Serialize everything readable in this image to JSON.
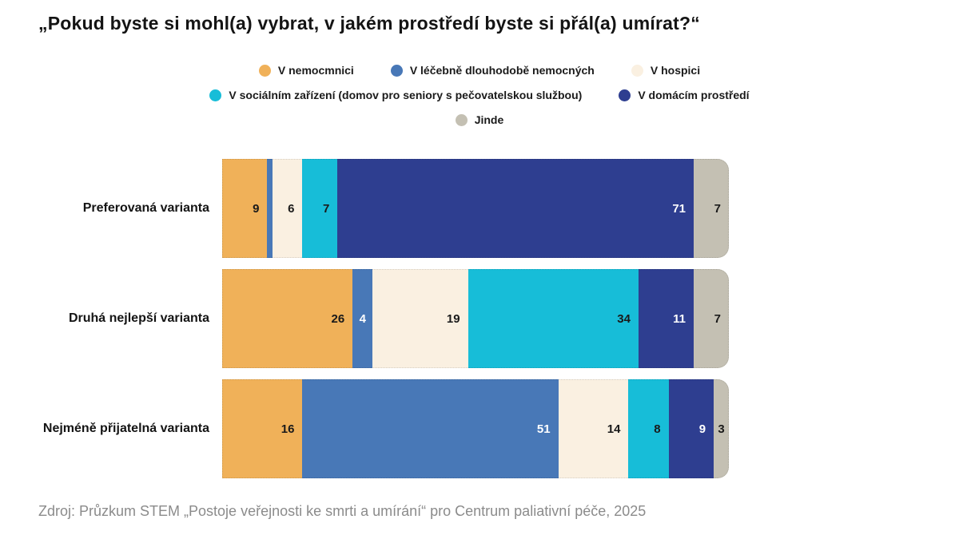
{
  "title": "„Pokud byste si mohl(a) vybrat, v jakém prostředí byste si přál(a) umírat?“",
  "source": "Zdroj: Průzkum STEM „Postoje veřejnosti ke smrti a umírání“ pro Centrum paliativní péče, 2025",
  "chart_data": {
    "type": "bar",
    "orientation": "horizontal-stacked",
    "unit": "percent",
    "title": "„Pokud byste si mohl(a) vybrat, v jakém prostředí byste si přál(a) umírat?“",
    "categories": [
      "Preferovaná varianta",
      "Druhá nejlepší varianta",
      "Nejméně přijatelná varianta"
    ],
    "series": [
      {
        "name": "V nemocmnici",
        "color": "#F0B159",
        "label_color": "#1a1a1a",
        "values": [
          9,
          26,
          16
        ],
        "labels": [
          "9",
          "26",
          "16"
        ]
      },
      {
        "name": "V léčebně dlouhodobě nemocných",
        "color": "#4878B7",
        "label_color": "#ffffff",
        "values": [
          1,
          4,
          51
        ],
        "labels": [
          "",
          "4",
          "51"
        ]
      },
      {
        "name": "V hospici",
        "color": "#FAF0E1",
        "label_color": "#1a1a1a",
        "values": [
          6,
          19,
          14
        ],
        "labels": [
          "6",
          "19",
          "14"
        ]
      },
      {
        "name": "V sociálním zařízení (domov pro seniory s pečovatelskou službou)",
        "color": "#17BDD8",
        "label_color": "#1a1a1a",
        "values": [
          7,
          34,
          8
        ],
        "labels": [
          "7",
          "34",
          "8"
        ]
      },
      {
        "name": "V domácím prostředí",
        "color": "#2E3E90",
        "label_color": "#ffffff",
        "values": [
          71,
          11,
          9
        ],
        "labels": [
          "71",
          "11",
          "9"
        ]
      },
      {
        "name": "Jinde",
        "color": "#C4C0B3",
        "label_color": "#1a1a1a",
        "values": [
          7,
          7,
          3
        ],
        "labels": [
          "7",
          "7",
          "3"
        ]
      }
    ],
    "legend_rows": [
      [
        0,
        1,
        2
      ],
      [
        3,
        4
      ],
      [
        5
      ]
    ],
    "legend_position": "top-center",
    "axis_max": 101,
    "grid": false,
    "data_labels": "inside-end"
  }
}
